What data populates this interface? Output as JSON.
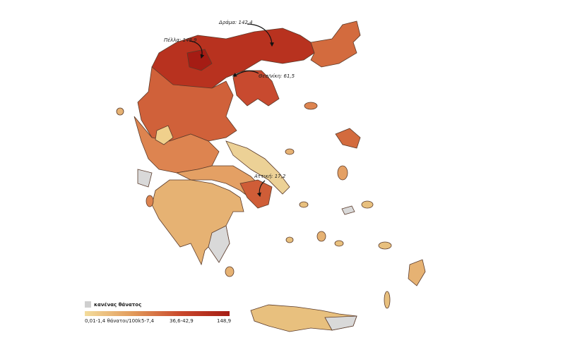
{
  "map": {
    "annotations": [
      {
        "label": "Δράμα: 142,4"
      },
      {
        "label": "Πέλλα: 148,9"
      },
      {
        "label": "Θεσ/νίκη: 61,5"
      },
      {
        "label": "Αττική: 17,2"
      }
    ],
    "legend": {
      "no_death": "κανένας θάνατος",
      "labels": [
        "0,01-1,4 θάνατοι/100k",
        "5-7,4",
        "36,6-42,9",
        "148,9"
      ],
      "gradient_colors": [
        "#f3dc9c",
        "#e29a5a",
        "#c9472b",
        "#a51c14"
      ]
    }
  }
}
